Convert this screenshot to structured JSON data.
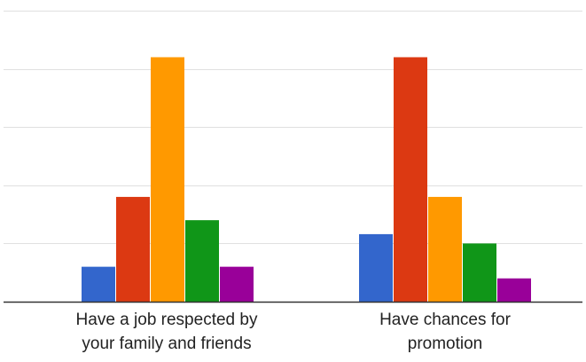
{
  "chart_data": {
    "type": "bar",
    "categories": [
      [
        "Have a job respected by",
        "your family and friends"
      ],
      [
        "Have chances for",
        "promotion"
      ]
    ],
    "series": [
      {
        "values": [
          3,
          5.8
        ],
        "color": "#3366cc"
      },
      {
        "values": [
          9,
          21
        ],
        "color": "#dc3912"
      },
      {
        "values": [
          21,
          9
        ],
        "color": "#ff9900"
      },
      {
        "values": [
          7,
          5
        ],
        "color": "#109618"
      },
      {
        "values": [
          3,
          2
        ],
        "color": "#990099"
      }
    ],
    "ylim": [
      0,
      25
    ],
    "grid": true,
    "gridline_values": [
      5,
      10,
      15,
      20,
      25
    ],
    "title": "",
    "xlabel": "",
    "ylabel": ""
  }
}
